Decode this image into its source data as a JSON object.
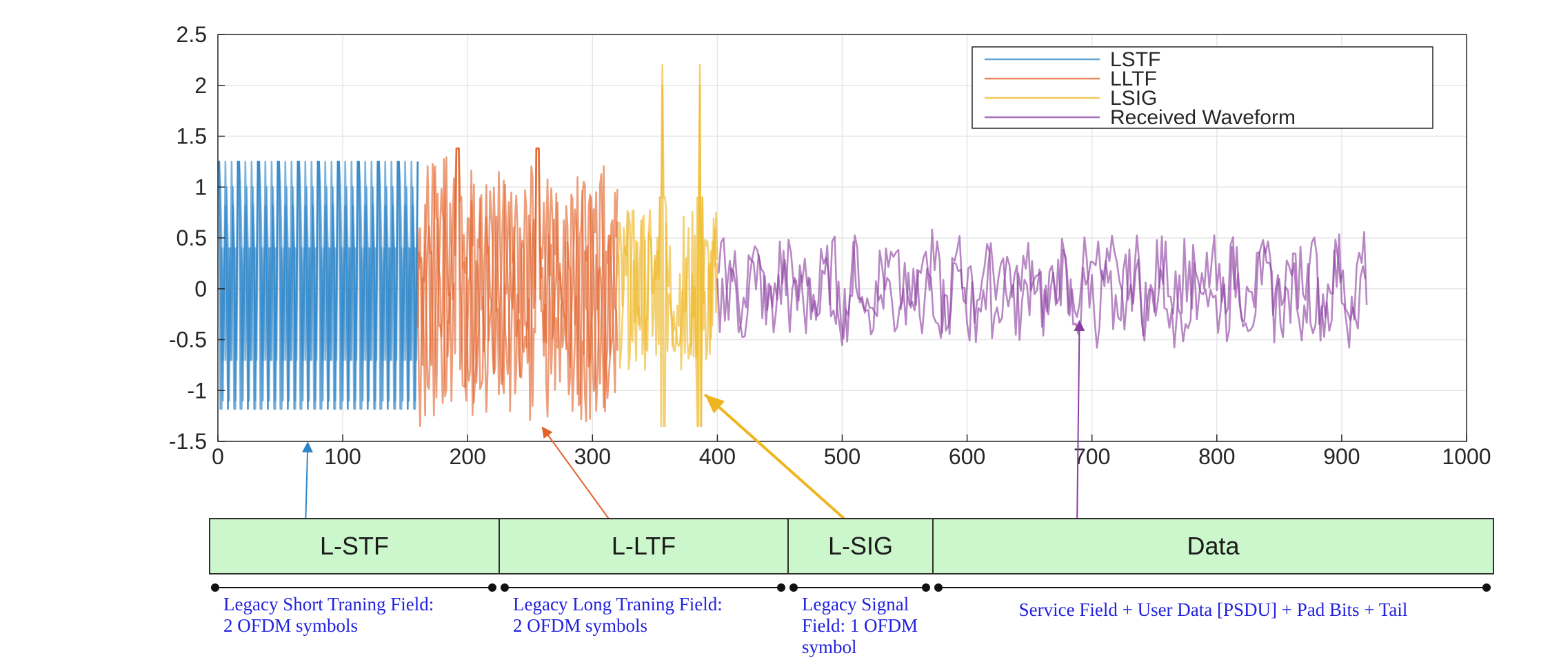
{
  "colors": {
    "lstf": "#2e86c8",
    "lltf": "#e2622a",
    "lsig": "#eeb51f",
    "received": "#8a3fa0",
    "field_fill": "#ccf7cc",
    "field_border": "#2e2e2e",
    "desc_text": "#2222dd"
  },
  "chart_data": {
    "type": "line",
    "xlim": [
      0,
      1000
    ],
    "ylim": [
      -1.5,
      2.5
    ],
    "xticks": [
      "0",
      "100",
      "200",
      "300",
      "400",
      "500",
      "600",
      "700",
      "800",
      "900",
      "1000"
    ],
    "yticks": [
      "2.5",
      "2",
      "1.5",
      "1",
      "0.5",
      "0",
      "-0.5",
      "-1",
      "-1.5"
    ],
    "grid": true,
    "legend": "top-right",
    "series": [
      {
        "name": "LSTF",
        "x_range": [
          0,
          160
        ],
        "y_range": [
          -1.18,
          1.25
        ],
        "period": 16
      },
      {
        "name": "LLTF",
        "x_range": [
          160,
          320
        ],
        "y_range": [
          -1.38,
          1.38
        ],
        "peak_x": [
          192,
          256
        ]
      },
      {
        "name": "LSIG",
        "x_range": [
          320,
          400
        ],
        "y_range": [
          -1.35,
          2.2
        ],
        "peak_x": [
          356,
          386
        ]
      },
      {
        "name": "Received Waveform",
        "x_range": [
          400,
          920
        ],
        "y_range": [
          -0.6,
          0.6
        ]
      }
    ]
  },
  "fields": [
    {
      "label": "L-STF",
      "description": [
        "Legacy Short Traning Field:",
        "2 OFDM symbols"
      ],
      "arrow_x": 72
    },
    {
      "label": "L-LTF",
      "description": [
        "Legacy Long Traning Field:",
        "2 OFDM symbols"
      ],
      "arrow_x": 260
    },
    {
      "label": "L-SIG",
      "description": [
        "Legacy Signal",
        "Field: 1 OFDM",
        "symbol"
      ],
      "arrow_x": 390
    },
    {
      "label": "Data",
      "description": [
        "Service Field + User Data [PSDU] + Pad Bits + Tail"
      ],
      "arrow_x": 690
    }
  ]
}
